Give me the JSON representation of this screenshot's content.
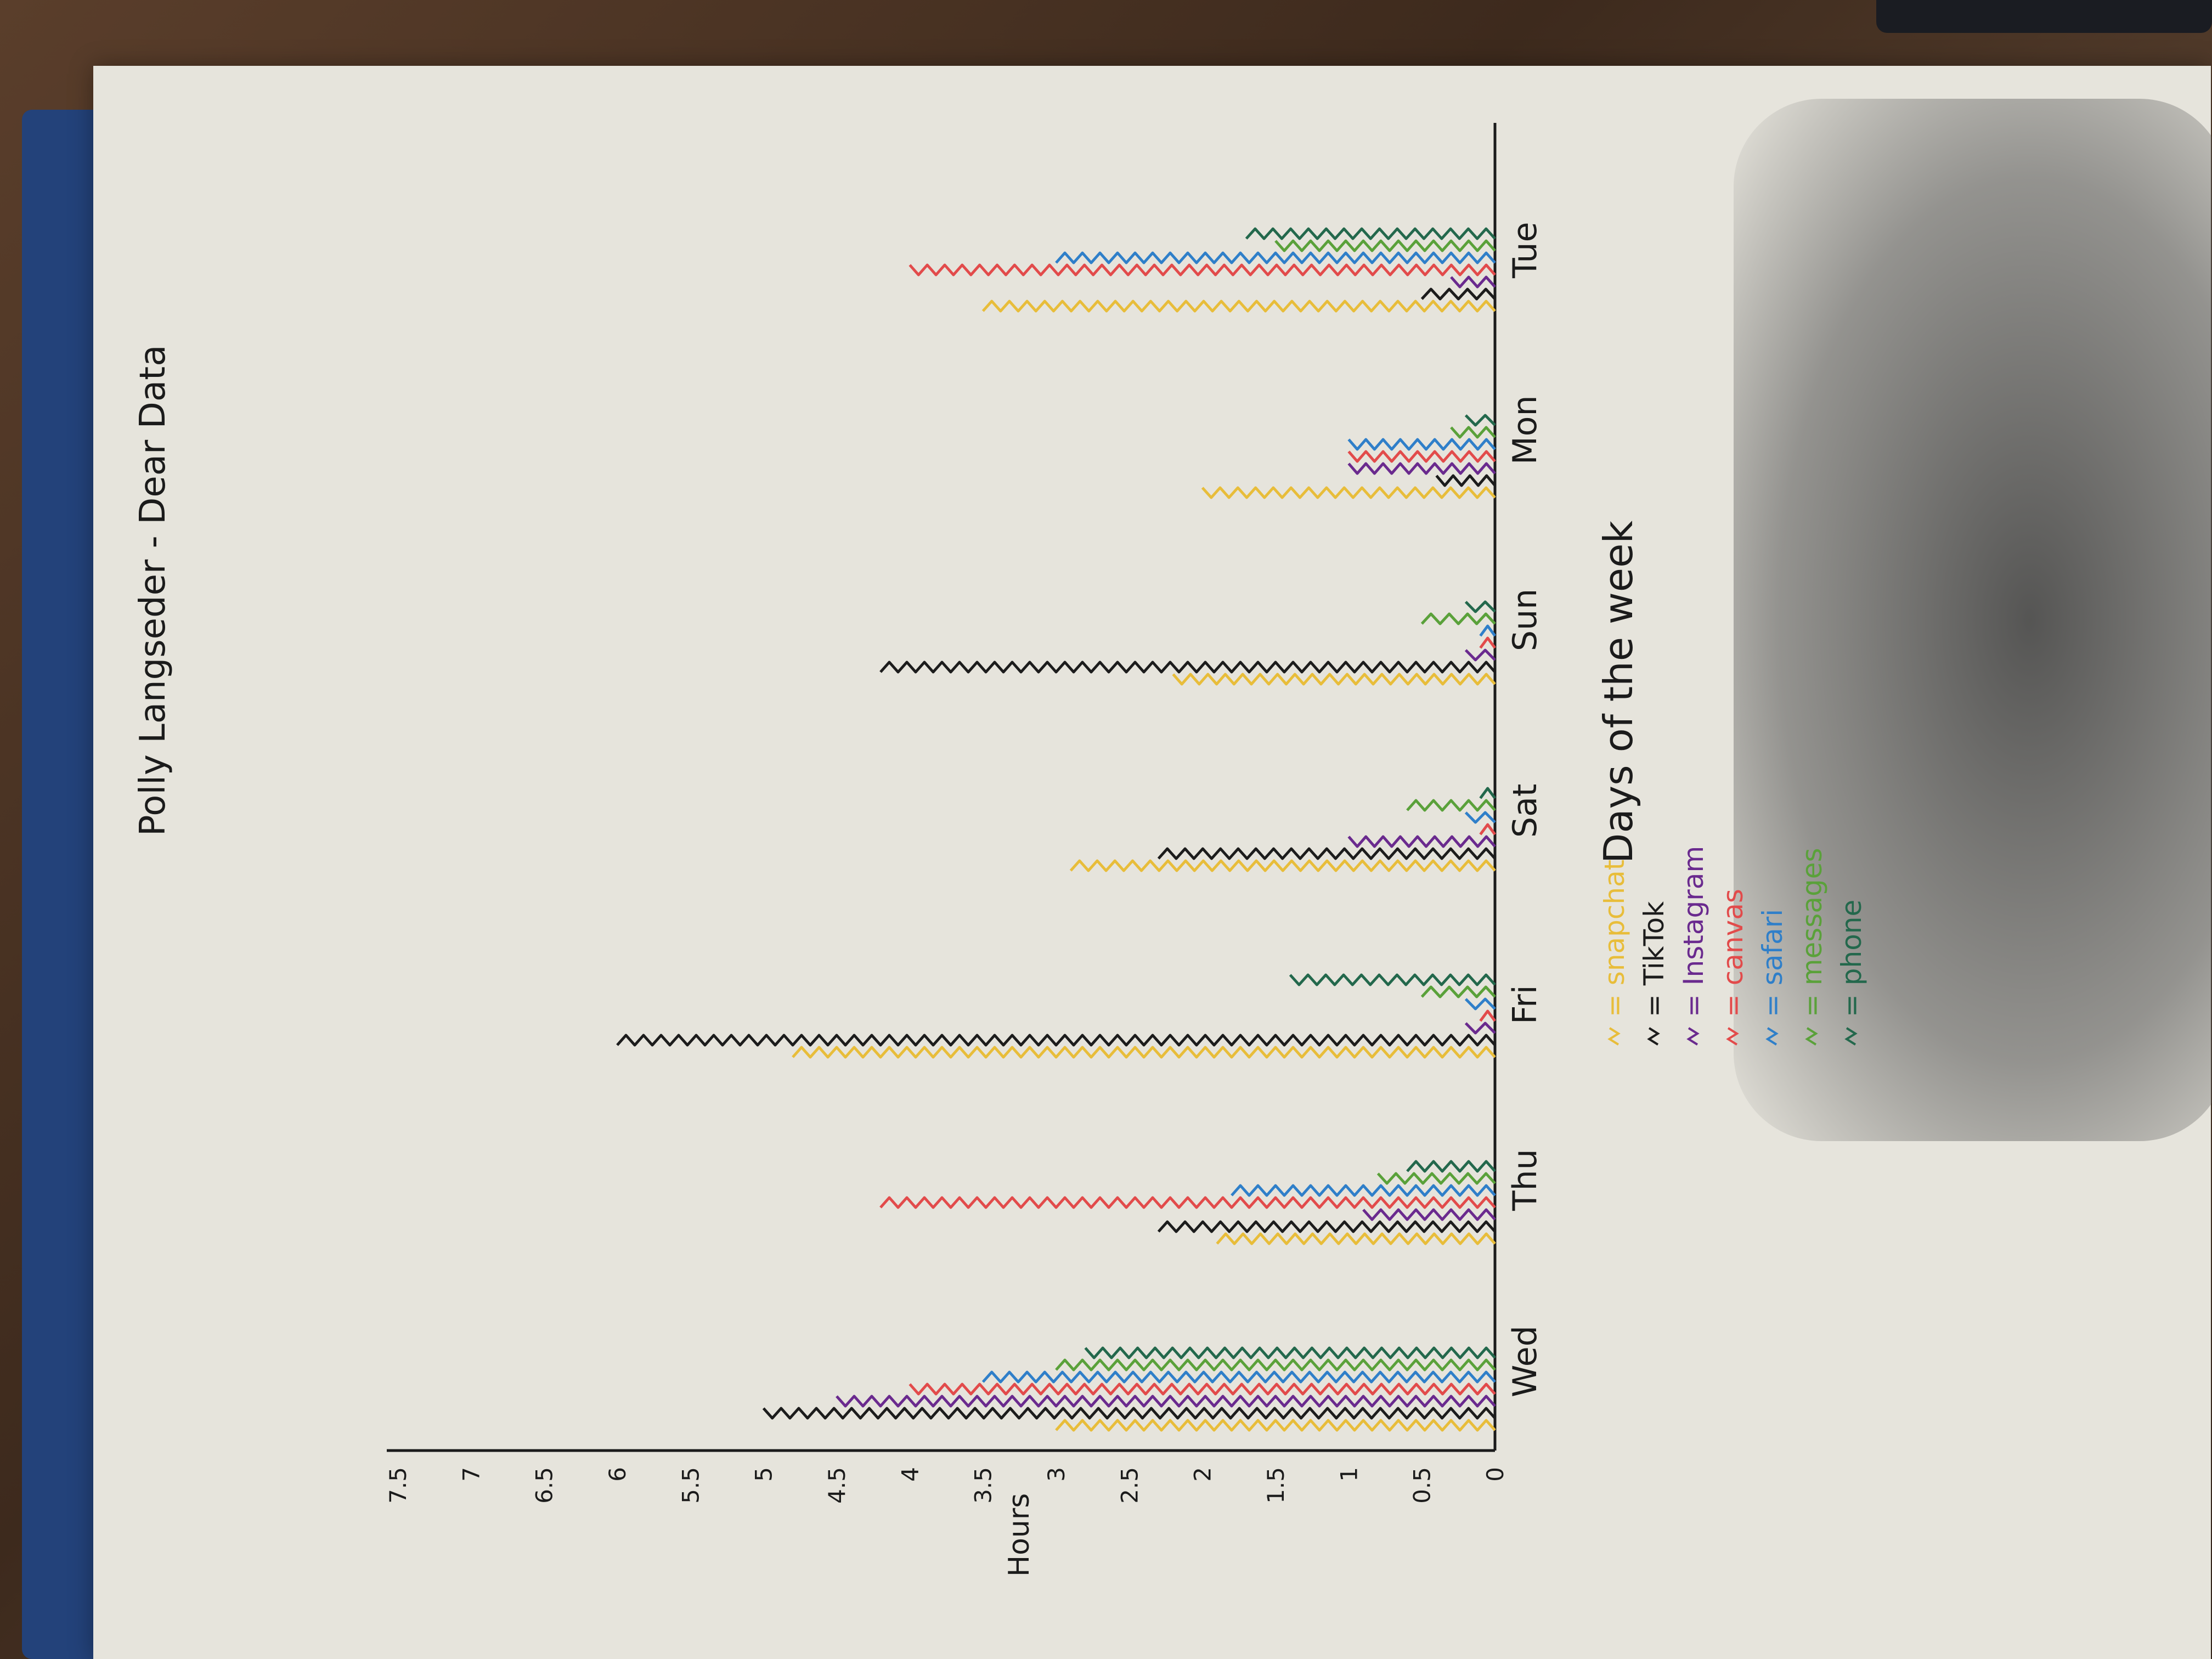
{
  "chart_data": {
    "type": "bar",
    "title": "Polly Langseder - Dear Data",
    "xlabel": "Days of the week",
    "ylabel": "Hours",
    "yticks": [
      "0",
      "0.5",
      "1",
      "1.5",
      "2",
      "2.5",
      "3",
      "3.5",
      "4",
      "4.5",
      "5",
      "5.5",
      "6",
      "6.5",
      "7",
      "7.5"
    ],
    "ylim": [
      0,
      7.5
    ],
    "categories": [
      "Wed",
      "Thu",
      "Fri",
      "Sat",
      "Sun",
      "Mon",
      "Tue"
    ],
    "series": [
      {
        "name": "snapchat",
        "color": "#e8bd3a",
        "values": [
          3.0,
          1.9,
          4.8,
          2.9,
          2.2,
          2.0,
          3.5
        ]
      },
      {
        "name": "TikTok",
        "color": "#1c1c1c",
        "values": [
          5.0,
          2.3,
          6.0,
          2.3,
          4.2,
          0.4,
          0.5
        ]
      },
      {
        "name": "Instagram",
        "color": "#6a2a8e",
        "values": [
          4.5,
          0.9,
          0.2,
          1.0,
          0.2,
          1.0,
          0.3
        ]
      },
      {
        "name": "canvas",
        "color": "#e24b4b",
        "values": [
          4.0,
          4.2,
          0.1,
          0.1,
          0.1,
          1.0,
          4.0
        ]
      },
      {
        "name": "safari",
        "color": "#2f7fc9",
        "values": [
          3.5,
          1.8,
          0.2,
          0.2,
          0.1,
          1.0,
          3.0
        ]
      },
      {
        "name": "messages",
        "color": "#5aa13a",
        "values": [
          3.0,
          0.8,
          0.5,
          0.6,
          0.5,
          0.3,
          1.5
        ]
      },
      {
        "name": "phone",
        "color": "#23684c",
        "values": [
          2.8,
          0.6,
          1.4,
          0.1,
          0.2,
          0.2,
          1.7
        ]
      }
    ],
    "legend_prefix": "= ",
    "legend_placement": "bottom-left"
  }
}
